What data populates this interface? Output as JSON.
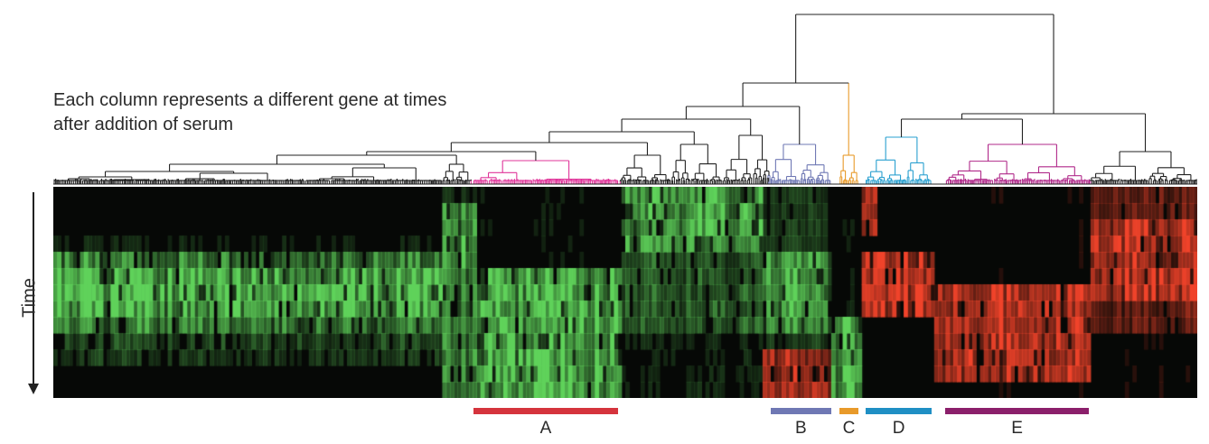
{
  "caption": "Each column represents a different gene at times after addition of serum",
  "axis": {
    "time_label": "Time"
  },
  "colors": {
    "neutral": "#222222",
    "up": "#f0432a",
    "down": "#5fd25a",
    "background": "#060806"
  },
  "clusters": [
    {
      "id": "A",
      "label": "A",
      "color": "#d5343d",
      "tree_color": "#e0359a",
      "start": 0.367,
      "end": 0.494
    },
    {
      "id": "B",
      "label": "B",
      "color": "#6f78b4",
      "tree_color": "#6f78b4",
      "start": 0.627,
      "end": 0.68
    },
    {
      "id": "C",
      "label": "C",
      "color": "#e89a2a",
      "tree_color": "#e89a2a",
      "start": 0.687,
      "end": 0.704
    },
    {
      "id": "D",
      "label": "D",
      "color": "#1f8fc4",
      "tree_color": "#2aa0d0",
      "start": 0.71,
      "end": 0.768
    },
    {
      "id": "E",
      "label": "E",
      "color": "#8b1f6b",
      "tree_color": "#b0298a",
      "start": 0.78,
      "end": 0.905
    }
  ]
}
